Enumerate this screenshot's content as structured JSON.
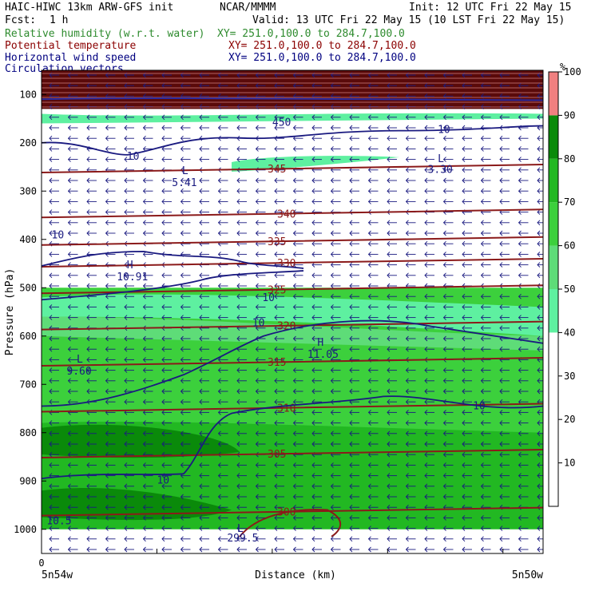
{
  "header": {
    "title": "HAIC-HIWC 13km ARW-GFS init",
    "center": "NCAR/MMMM",
    "init": "Init: 12 UTC Fri 22 May 15",
    "fcst_label": "Fcst:",
    "fcst_value": "1 h",
    "valid": "Valid: 13 UTC Fri 22 May 15 (10 LST Fri 22 May 15)"
  },
  "legend": [
    {
      "name": "Relative humidity (w.r.t. water)",
      "xy": "XY= 251.0,100.0 to 284.7,100.0",
      "color": "#2e8b2e"
    },
    {
      "name": "Potential temperature",
      "xy": "XY= 251.0,100.0 to 284.7,100.0",
      "color": "#8b0000"
    },
    {
      "name": "Horizontal wind speed",
      "xy": "XY= 251.0,100.0 to 284.7,100.0",
      "color": "#000080"
    },
    {
      "name": "Circulation vectors",
      "xy": "XY= 251.0,100.0 to 284.7,100.0",
      "color": "#000080"
    }
  ],
  "colors": {
    "theta": "#8b1a1a",
    "wind": "#1a1a80",
    "rh_50": "#5ef0a0",
    "rh_60": "#5edc78",
    "rh_70": "#3cd03c",
    "rh_80": "#22b822",
    "rh_90": "#0a8a0a",
    "rh_100": "#f08080",
    "stratosphere": "#5a0a0a"
  },
  "chart_data": {
    "type": "contour",
    "xlabel": "Distance (km)",
    "ylabel": "Pressure (hPa)",
    "x_tick_labels": [
      "0"
    ],
    "x_endpoint_left": "5n54w",
    "x_endpoint_right": "5n50w",
    "ylim": [
      1050,
      50
    ],
    "y_ticks": [
      100,
      200,
      300,
      400,
      500,
      600,
      700,
      800,
      900,
      1000
    ],
    "colorbar": {
      "unit": "%",
      "ticks": [
        10,
        20,
        30,
        40,
        50,
        60,
        70,
        80,
        90,
        100
      ]
    },
    "theta_contours": [
      {
        "value": "345",
        "p": 255
      },
      {
        "value": "340",
        "p": 348
      },
      {
        "value": "335",
        "p": 405
      },
      {
        "value": "330",
        "p": 450
      },
      {
        "value": "325",
        "p": 505
      },
      {
        "value": "320",
        "p": 580
      },
      {
        "value": "315",
        "p": 655
      },
      {
        "value": "310",
        "p": 750
      },
      {
        "value": "305",
        "p": 845
      },
      {
        "value": "300",
        "p": 965
      }
    ],
    "labels": [
      {
        "text": "L",
        "x": 0.28,
        "p": 265
      },
      {
        "text": "5.41",
        "x": 0.26,
        "p": 290
      },
      {
        "text": "L",
        "x": 0.79,
        "p": 240
      },
      {
        "text": "3.30",
        "x": 0.77,
        "p": 262
      },
      {
        "text": "H",
        "x": 0.17,
        "p": 460
      },
      {
        "text": "10.91",
        "x": 0.15,
        "p": 485
      },
      {
        "text": "H",
        "x": 0.55,
        "p": 620
      },
      {
        "text": "11.05",
        "x": 0.53,
        "p": 645
      },
      {
        "text": "L",
        "x": 0.07,
        "p": 655
      },
      {
        "text": "9.60",
        "x": 0.05,
        "p": 680
      },
      {
        "text": "L",
        "x": 0.39,
        "p": 1005
      },
      {
        "text": "299.5",
        "x": 0.37,
        "p": 1025
      },
      {
        "text": "10",
        "x": 0.17,
        "p": 235
      },
      {
        "text": "10",
        "x": 0.79,
        "p": 180
      },
      {
        "text": "10",
        "x": 0.44,
        "p": 528
      },
      {
        "text": "10",
        "x": 0.42,
        "p": 580
      },
      {
        "text": "10",
        "x": 0.23,
        "p": 905
      },
      {
        "text": "10",
        "x": 0.86,
        "p": 752
      },
      {
        "text": "10",
        "x": 0.02,
        "p": 398
      },
      {
        "text": "10.5",
        "x": 0.01,
        "p": 990
      },
      {
        "text": "450",
        "x": 0.46,
        "p": 165
      }
    ]
  }
}
